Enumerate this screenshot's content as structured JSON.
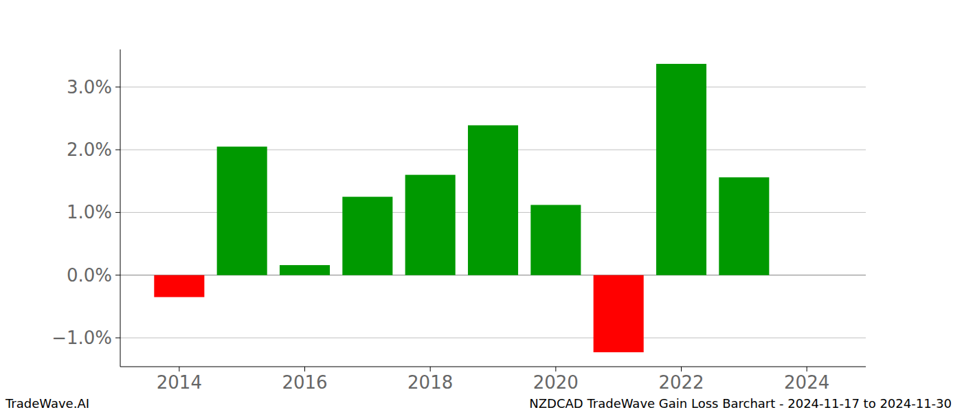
{
  "chart_data": {
    "type": "bar",
    "title": "NZDCAD TradeWave Gain Loss Barchart - 2024-11-17 to 2024-11-30",
    "annotations": [
      "TradeWave.AI"
    ],
    "x": [
      2014,
      2015,
      2016,
      2017,
      2018,
      2019,
      2020,
      2021,
      2022,
      2023,
      2024
    ],
    "values": [
      -0.35,
      2.05,
      0.16,
      1.25,
      1.6,
      2.39,
      1.12,
      -1.23,
      3.37,
      1.56,
      0
    ],
    "colors": [
      "#ff0000",
      "#009900",
      "#009900",
      "#009900",
      "#009900",
      "#009900",
      "#009900",
      "#ff0000",
      "#009900",
      "#009900",
      "#009900"
    ],
    "xlim": [
      2013.06,
      2024.94
    ],
    "xticks": [
      2014,
      2016,
      2018,
      2020,
      2022,
      2024
    ],
    "ylim": [
      -1.46,
      3.6
    ],
    "yticks": [
      {
        "value": -1,
        "label": "−1.0%"
      },
      {
        "value": 0,
        "label": "0.0%"
      },
      {
        "value": 1,
        "label": "1.0%"
      },
      {
        "value": 2,
        "label": "2.0%"
      },
      {
        "value": 3,
        "label": "3.0%"
      }
    ],
    "grid": true
  }
}
